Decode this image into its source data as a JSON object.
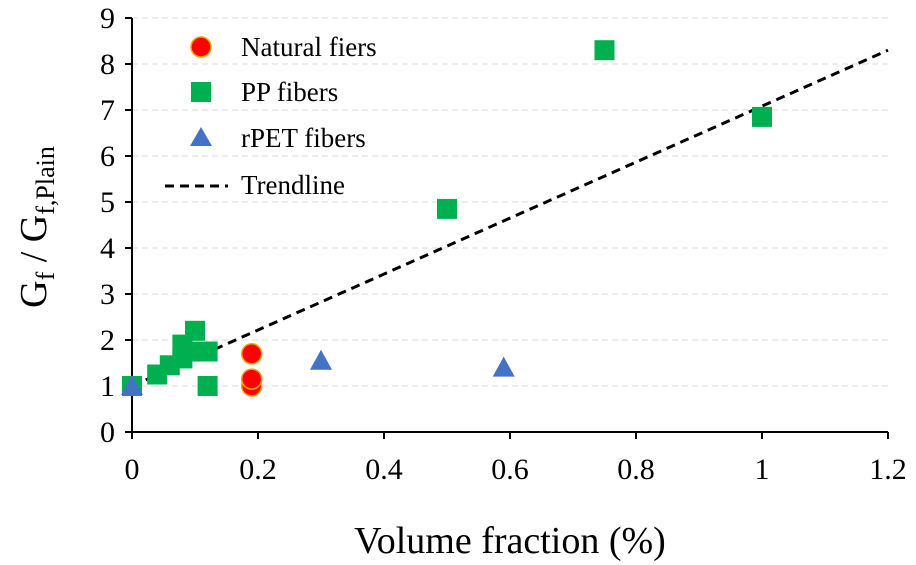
{
  "chart_data": {
    "type": "scatter",
    "title": "",
    "xlabel": "Volume fraction (%)",
    "ylabel": {
      "base": "G",
      "sub1": "f",
      "sep": " / ",
      "base2": "G",
      "sub2": "f,Plain"
    },
    "xlim": [
      0,
      1.2
    ],
    "ylim": [
      0,
      9
    ],
    "xticks": [
      "0",
      "0.2",
      "0.4",
      "0.6",
      "0.8",
      "1",
      "1.2"
    ],
    "yticks": [
      "0",
      "1",
      "2",
      "3",
      "4",
      "5",
      "6",
      "7",
      "8",
      "9"
    ],
    "xtick_values": [
      0,
      0.2,
      0.4,
      0.6,
      0.8,
      1.0,
      1.2
    ],
    "ytick_values": [
      0,
      1,
      2,
      3,
      4,
      5,
      6,
      7,
      8,
      9
    ],
    "grid": "horizontal dashed",
    "legend_position": "top-left",
    "series": [
      {
        "name": "Natural fiers",
        "marker": "circle",
        "color": "#ff0000",
        "edge_color": "#f4a300",
        "points": [
          {
            "x": 0.19,
            "y": 1.0
          },
          {
            "x": 0.19,
            "y": 1.15
          },
          {
            "x": 0.19,
            "y": 1.7
          }
        ]
      },
      {
        "name": "PP fibers",
        "marker": "square",
        "color": "#00b050",
        "points": [
          {
            "x": 0.0,
            "y": 1.0
          },
          {
            "x": 0.04,
            "y": 1.25
          },
          {
            "x": 0.06,
            "y": 1.45
          },
          {
            "x": 0.08,
            "y": 1.6
          },
          {
            "x": 0.08,
            "y": 1.9
          },
          {
            "x": 0.1,
            "y": 1.75
          },
          {
            "x": 0.1,
            "y": 2.2
          },
          {
            "x": 0.12,
            "y": 1.0
          },
          {
            "x": 0.12,
            "y": 1.75
          },
          {
            "x": 0.5,
            "y": 4.85
          },
          {
            "x": 0.75,
            "y": 8.3
          },
          {
            "x": 1.0,
            "y": 6.85
          }
        ]
      },
      {
        "name": "rPET fibers",
        "marker": "triangle",
        "color": "#4472c4",
        "points": [
          {
            "x": 0.0,
            "y": 1.0
          },
          {
            "x": 0.3,
            "y": 1.55
          },
          {
            "x": 0.59,
            "y": 1.4
          }
        ]
      }
    ],
    "trendline": {
      "name": "Trendline",
      "style": "dashed",
      "color": "#000000",
      "points": [
        {
          "x": 0.0,
          "y": 1.0
        },
        {
          "x": 1.2,
          "y": 8.3
        }
      ]
    }
  }
}
